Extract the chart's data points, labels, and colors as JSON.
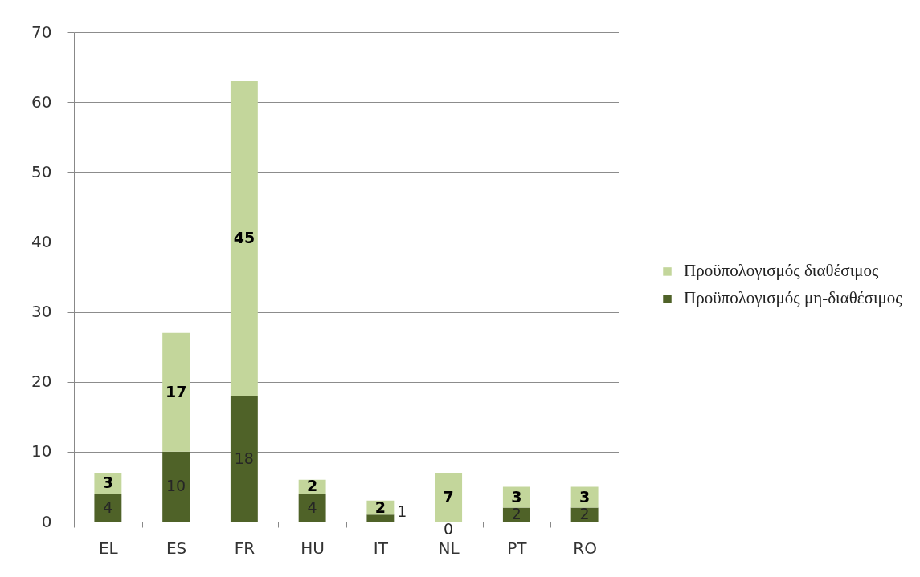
{
  "chart_data": {
    "type": "bar",
    "stacked": true,
    "categories": [
      "EL",
      "ES",
      "FR",
      "HU",
      "IT",
      "NL",
      "PT",
      "RO"
    ],
    "series": [
      {
        "name": "Προϋπολογισμός μη-διαθέσιμος",
        "color": "#4f6228",
        "values": [
          4,
          10,
          18,
          4,
          1,
          0,
          2,
          2
        ]
      },
      {
        "name": "Προϋπολογισμός διαθέσιμος",
        "color": "#c3d69b",
        "values": [
          3,
          17,
          45,
          2,
          2,
          7,
          3,
          3
        ]
      }
    ],
    "ylim": [
      0,
      70
    ],
    "yticks": [
      0,
      10,
      20,
      30,
      40,
      50,
      60,
      70
    ],
    "grid": "y",
    "legend": "right",
    "data_labels": true
  }
}
